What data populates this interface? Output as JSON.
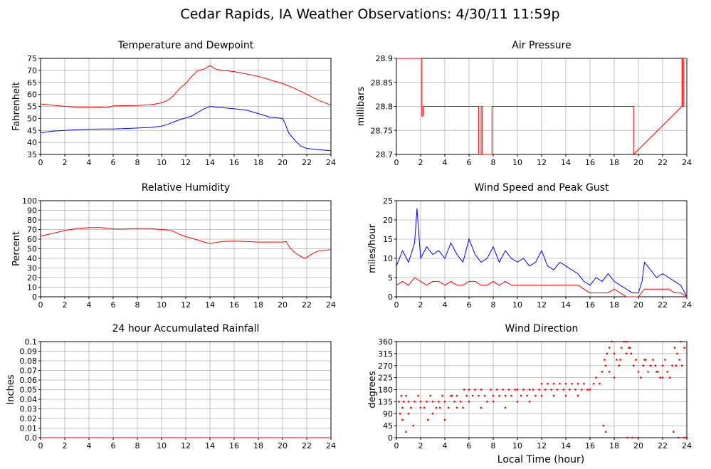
{
  "page": {
    "title": "Cedar Rapids, IA Weather Observations: 4/30/11 11:59p",
    "shared_xlabel": "Local Time (hour)"
  },
  "chart_data": [
    {
      "id": "temp",
      "type": "line",
      "title": "Temperature and Dewpoint",
      "xlabel": "",
      "ylabel": "Fahrenheit",
      "xlim": [
        0,
        24
      ],
      "ylim": [
        35,
        75
      ],
      "xticks": [
        0,
        2,
        4,
        6,
        8,
        10,
        12,
        14,
        16,
        18,
        20,
        22,
        24
      ],
      "yticks": [
        "35",
        "40",
        "45",
        "50",
        "55",
        "60",
        "65",
        "70",
        "75"
      ],
      "yticks_values": [
        35,
        40,
        45,
        50,
        55,
        60,
        65,
        70,
        75
      ],
      "grid": true,
      "series": [
        {
          "color": "#ff0000",
          "x": [
            0,
            1,
            2,
            3,
            4,
            5,
            5.5,
            6,
            7,
            8,
            9,
            9.5,
            10,
            10.5,
            11,
            11.5,
            12,
            12.5,
            13,
            13.5,
            14,
            14.5,
            15,
            16,
            17,
            18,
            19,
            20,
            21,
            22,
            23,
            24
          ],
          "y": [
            56,
            55.5,
            55,
            54.7,
            54.6,
            54.7,
            54.5,
            55.2,
            55.3,
            55.4,
            55.7,
            56,
            56.5,
            57.5,
            59.5,
            62.5,
            64.5,
            67.5,
            70,
            70.5,
            72,
            70.5,
            70,
            69.5,
            68.5,
            67.5,
            66,
            64.5,
            62.5,
            60,
            57.5,
            55.5
          ]
        },
        {
          "color": "#0000ff",
          "x": [
            0,
            1,
            2,
            3,
            4,
            5,
            6,
            7,
            8,
            9,
            10,
            10.5,
            11,
            11.5,
            12,
            12.5,
            13,
            13.5,
            14,
            14.5,
            15,
            16,
            17,
            18,
            19,
            20,
            20.2,
            20.5,
            21,
            21.5,
            22,
            23,
            24
          ],
          "y": [
            44,
            44.7,
            45,
            45.3,
            45.5,
            45.6,
            45.6,
            45.8,
            46,
            46.2,
            46.8,
            47.5,
            48.5,
            49.5,
            50.2,
            51,
            52.5,
            54,
            55,
            54.7,
            54.5,
            54,
            53.5,
            52,
            50.5,
            50,
            48,
            44,
            41,
            38.5,
            37.5,
            37,
            36.5
          ]
        }
      ]
    },
    {
      "id": "pressure",
      "type": "line",
      "title": "Air Pressure",
      "xlabel": "",
      "ylabel": "millibars",
      "xlim": [
        0,
        24
      ],
      "ylim": [
        28.7,
        28.9
      ],
      "xticks": [
        0,
        2,
        4,
        6,
        8,
        10,
        12,
        14,
        16,
        18,
        20,
        22,
        24
      ],
      "yticks": [
        "28.7",
        "28.75",
        "28.8",
        "28.85",
        "28.9"
      ],
      "yticks_values": [
        28.7,
        28.75,
        28.8,
        28.85,
        28.9
      ],
      "grid": true,
      "series": [
        {
          "color": "#ff0000",
          "x": [
            0,
            2.1,
            2.1,
            2.2,
            2.2,
            6.8,
            6.8,
            7.0,
            7.0,
            7.1,
            7.1,
            7.9,
            7.9,
            19.6,
            19.6,
            23.6,
            23.6,
            23.65,
            23.65,
            23.75,
            23.75,
            24
          ],
          "y": [
            28.9,
            28.9,
            28.78,
            28.78,
            28.8,
            28.8,
            28.7,
            28.7,
            28.8,
            28.8,
            28.7,
            28.7,
            28.8,
            28.8,
            28.7,
            28.8,
            28.9,
            28.9,
            28.8,
            28.8,
            28.9,
            28.9
          ]
        }
      ]
    },
    {
      "id": "humidity",
      "type": "line",
      "title": "Relative Humidity",
      "xlabel": "",
      "ylabel": "Percent",
      "xlim": [
        0,
        24
      ],
      "ylim": [
        0,
        100
      ],
      "xticks": [
        0,
        2,
        4,
        6,
        8,
        10,
        12,
        14,
        16,
        18,
        20,
        22,
        24
      ],
      "yticks": [
        "0",
        "10",
        "20",
        "30",
        "40",
        "50",
        "60",
        "70",
        "80",
        "90",
        "100"
      ],
      "yticks_values": [
        0,
        10,
        20,
        30,
        40,
        50,
        60,
        70,
        80,
        90,
        100
      ],
      "grid": true,
      "series": [
        {
          "color": "#ff0000",
          "x": [
            0,
            1,
            2,
            3,
            4,
            5,
            6,
            7,
            8,
            9,
            10,
            10.5,
            11,
            11.5,
            12,
            12.5,
            13,
            13.5,
            14,
            14.5,
            15,
            16,
            17,
            18,
            19,
            20,
            20.3,
            20.6,
            21,
            21.5,
            21.8,
            22,
            22.5,
            23,
            24
          ],
          "y": [
            63,
            66,
            69,
            71,
            72,
            72,
            70.5,
            70.5,
            71,
            71,
            70,
            69.5,
            68,
            65,
            62.5,
            61,
            59,
            57,
            55.5,
            56.5,
            57.5,
            58,
            57.5,
            57,
            57,
            57,
            57.5,
            51,
            46,
            42,
            40,
            41,
            45,
            48,
            49
          ]
        }
      ]
    },
    {
      "id": "wind",
      "type": "line",
      "title": "Wind Speed and Peak Gust",
      "xlabel": "",
      "ylabel": "miles/hour",
      "xlim": [
        0,
        24
      ],
      "ylim": [
        0,
        25
      ],
      "xticks": [
        0,
        2,
        4,
        6,
        8,
        10,
        12,
        14,
        16,
        18,
        20,
        22,
        24
      ],
      "yticks": [
        "0",
        "5",
        "10",
        "15",
        "20",
        "25"
      ],
      "yticks_values": [
        0,
        5,
        10,
        15,
        20,
        25
      ],
      "grid": true,
      "series": [
        {
          "color": "#0000ff",
          "x": [
            0,
            0.5,
            1,
            1.5,
            1.7,
            2,
            2.5,
            3,
            3.5,
            4,
            4.5,
            5,
            5.5,
            6,
            6.5,
            7,
            7.5,
            8,
            8.5,
            9,
            9.5,
            10,
            10.5,
            11,
            11.5,
            12,
            12.5,
            13,
            13.5,
            14,
            14.5,
            15,
            15.5,
            16,
            16.5,
            17,
            17.5,
            18,
            18.5,
            19,
            19.5,
            20,
            20.3,
            20.5,
            21,
            21.5,
            22,
            22.5,
            23,
            23.5,
            24
          ],
          "y": [
            8,
            12,
            9,
            14,
            23,
            10,
            13,
            11,
            12,
            10,
            14,
            11,
            9,
            15,
            11,
            9,
            10,
            13,
            9,
            12,
            10,
            9,
            10,
            8,
            9,
            12,
            8,
            7,
            9,
            8,
            7,
            6,
            4,
            3,
            5,
            4,
            6,
            4,
            3,
            2,
            1,
            1,
            4,
            9,
            7,
            5,
            6,
            5,
            4,
            3,
            0
          ]
        },
        {
          "color": "#ff0000",
          "x": [
            0,
            0.5,
            1,
            1.5,
            2,
            2.5,
            3,
            3.5,
            4,
            4.5,
            5,
            5.5,
            6,
            6.5,
            7,
            7.5,
            8,
            8.5,
            9,
            9.5,
            10,
            10.5,
            11,
            11.5,
            12,
            12.5,
            13,
            13.5,
            14,
            14.5,
            15,
            15.5,
            16,
            16.5,
            17,
            17.5,
            18,
            18.5,
            19,
            19.5,
            20,
            20.5,
            21,
            21.5,
            22,
            22.5,
            23,
            23.5,
            24
          ],
          "y": [
            3,
            4,
            3,
            5,
            4,
            3,
            4,
            4,
            3,
            4,
            3,
            3,
            4,
            4,
            3,
            3,
            4,
            3,
            4,
            3,
            3,
            3,
            3,
            3,
            3,
            3,
            3,
            3,
            3,
            3,
            3,
            2,
            1,
            1,
            1,
            1,
            2,
            1,
            0,
            0,
            0,
            2,
            2,
            2,
            2,
            2,
            1,
            1,
            0
          ]
        }
      ]
    },
    {
      "id": "rain",
      "type": "line",
      "title": "24 hour Accumulated Rainfall",
      "xlabel": "",
      "ylabel": "Inches",
      "xlim": [
        0,
        24
      ],
      "ylim": [
        0,
        0.1
      ],
      "xticks": [
        0,
        2,
        4,
        6,
        8,
        10,
        12,
        14,
        16,
        18,
        20,
        22,
        24
      ],
      "yticks": [
        "0.0",
        "0.01",
        "0.02",
        "0.03",
        "0.04",
        "0.05",
        "0.06",
        "0.07",
        "0.08",
        "0.09",
        "0.1"
      ],
      "yticks_values": [
        0,
        0.01,
        0.02,
        0.03,
        0.04,
        0.05,
        0.06,
        0.07,
        0.08,
        0.09,
        0.1
      ],
      "grid": true,
      "series": [
        {
          "color": "#ff0000",
          "x": [
            0,
            24
          ],
          "y": [
            0,
            0
          ]
        }
      ]
    },
    {
      "id": "winddir",
      "type": "scatter",
      "title": "Wind Direction",
      "xlabel": "Local Time (hour)",
      "ylabel": "degrees",
      "xlim": [
        0,
        24
      ],
      "ylim": [
        0,
        360
      ],
      "xticks": [
        0,
        2,
        4,
        6,
        8,
        10,
        12,
        14,
        16,
        18,
        20,
        22,
        24
      ],
      "yticks": [
        "0",
        "45",
        "90",
        "135",
        "180",
        "225",
        "270",
        "315",
        "360"
      ],
      "yticks_values": [
        0,
        45,
        90,
        135,
        180,
        225,
        270,
        315,
        360
      ],
      "grid": true,
      "series": [
        {
          "color": "#ff0000",
          "x": [
            0.2,
            0.3,
            0.4,
            0.5,
            0.6,
            0.8,
            1.0,
            1.2,
            1.5,
            1.8,
            2.0,
            2.3,
            2.5,
            2.8,
            3.0,
            3.3,
            3.5,
            3.8,
            4.0,
            4.3,
            4.5,
            4.8,
            5.0,
            5.3,
            5.5,
            5.8,
            6.0,
            6.3,
            6.5,
            6.8,
            7.0,
            7.3,
            7.5,
            7.8,
            8.0,
            8.3,
            8.5,
            8.8,
            9.0,
            9.3,
            9.5,
            9.8,
            10.0,
            10.3,
            10.5,
            10.8,
            11.0,
            11.3,
            11.5,
            11.8,
            12.0,
            12.3,
            12.5,
            12.8,
            13.0,
            13.3,
            13.5,
            13.8,
            14.0,
            14.3,
            14.5,
            14.8,
            15.0,
            15.3,
            15.5,
            15.8,
            16.0,
            16.3,
            16.5,
            16.8,
            17.0,
            17.2,
            17.4,
            17.6,
            17.8,
            18.0,
            18.2,
            18.4,
            18.6,
            18.8,
            19.0,
            19.2,
            19.4,
            19.6,
            19.8,
            20.0,
            20.2,
            20.4,
            20.6,
            20.8,
            21.0,
            21.2,
            21.4,
            21.6,
            21.8,
            22.0,
            22.2,
            22.4,
            22.6,
            22.8,
            23.0,
            23.2,
            23.4,
            23.6,
            23.8,
            24.0,
            0.5,
            1.0,
            2.0,
            3.0,
            4.0,
            5.0,
            6.0,
            7.0,
            8.0,
            9.0,
            10.0,
            11.0,
            12.0,
            13.0,
            14.0,
            15.0,
            17.3,
            17.6,
            18.0,
            18.5,
            19.0,
            19.3,
            20.5,
            21.0,
            21.5,
            22.0,
            23.1,
            23.5,
            17.1,
            17.3,
            19.1,
            19.5,
            20.0,
            22.9,
            23.3,
            23.8,
            24.0,
            0.8,
            1.4,
            2.6,
            3.6,
            4.6,
            5.6
          ],
          "y": [
            135,
            90,
            157,
            112,
            135,
            157,
            135,
            112,
            135,
            157,
            135,
            112,
            135,
            157,
            135,
            112,
            135,
            157,
            135,
            112,
            157,
            135,
            157,
            135,
            112,
            157,
            180,
            157,
            180,
            157,
            180,
            157,
            135,
            180,
            157,
            180,
            157,
            180,
            157,
            180,
            157,
            180,
            180,
            157,
            180,
            157,
            180,
            180,
            157,
            180,
            202,
            180,
            202,
            180,
            202,
            180,
            202,
            180,
            202,
            180,
            202,
            180,
            202,
            180,
            202,
            180,
            180,
            202,
            225,
            202,
            247,
            292,
            315,
            337,
            360,
            315,
            292,
            270,
            337,
            360,
            360,
            337,
            315,
            270,
            292,
            247,
            225,
            270,
            292,
            247,
            270,
            292,
            270,
            247,
            225,
            270,
            292,
            247,
            225,
            270,
            337,
            315,
            292,
            270,
            337,
            0,
            67,
            90,
            112,
            90,
            67,
            112,
            135,
            112,
            135,
            112,
            135,
            135,
            157,
            157,
            157,
            157,
            270,
            247,
            225,
            292,
            315,
            337,
            292,
            270,
            247,
            225,
            270,
            360,
            45,
            22,
            0,
            0,
            0,
            22,
            0,
            0,
            0,
            22,
            45,
            67,
            112,
            157,
            180
          ],
          "marker": "dot"
        }
      ]
    }
  ]
}
